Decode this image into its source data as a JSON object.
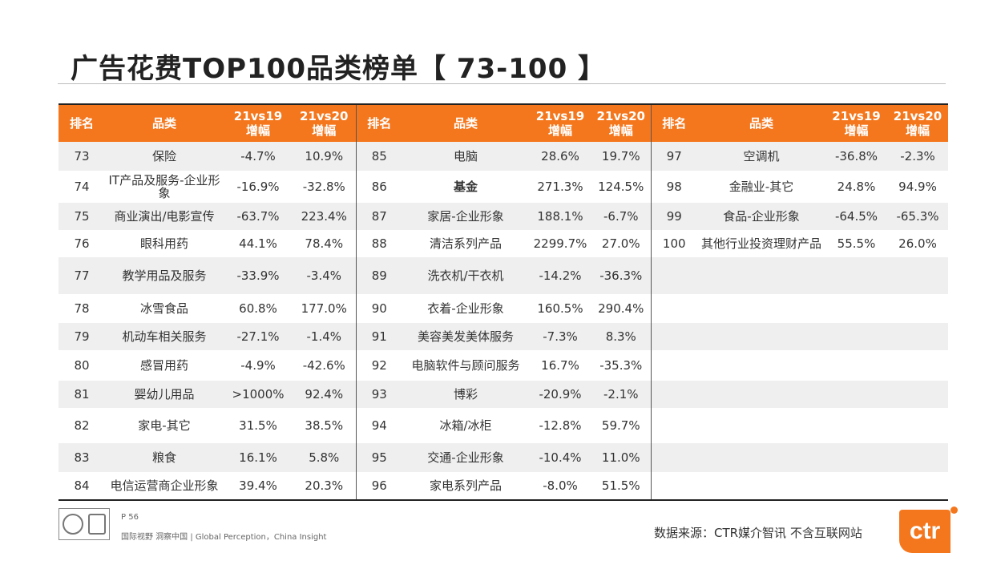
{
  "title": "广告花费TOP100品类榜单【 73-100 】",
  "headers": {
    "rank": "排名",
    "category": "品类",
    "c21vs19_line1": "21vs19",
    "c21vs19_line2": "增幅",
    "c21vs20_line1": "21vs20",
    "c21vs20_line2": "增幅"
  },
  "rows": [
    [
      {
        "rank": "73",
        "cat": "保险",
        "g19": "-4.7%",
        "g20": "10.9%"
      },
      {
        "rank": "85",
        "cat": "电脑",
        "g19": "28.6%",
        "g20": "19.7%"
      },
      {
        "rank": "97",
        "cat": "空调机",
        "g19": "-36.8%",
        "g20": "-2.3%"
      }
    ],
    [
      {
        "rank": "74",
        "cat": "IT产品及服务-企业形象",
        "g19": "-16.9%",
        "g20": "-32.8%"
      },
      {
        "rank": "86",
        "cat": "基金",
        "g19": "271.3%",
        "g20": "124.5%"
      },
      {
        "rank": "98",
        "cat": "金融业-其它",
        "g19": "24.8%",
        "g20": "94.9%"
      }
    ],
    [
      {
        "rank": "75",
        "cat": "商业演出/电影宣传",
        "g19": "-63.7%",
        "g20": "223.4%"
      },
      {
        "rank": "87",
        "cat": "家居-企业形象",
        "g19": "188.1%",
        "g20": "-6.7%"
      },
      {
        "rank": "99",
        "cat": "食品-企业形象",
        "g19": "-64.5%",
        "g20": "-65.3%"
      }
    ],
    [
      {
        "rank": "76",
        "cat": "眼科用药",
        "g19": "44.1%",
        "g20": "78.4%"
      },
      {
        "rank": "88",
        "cat": "清洁系列产品",
        "g19": "2299.7%",
        "g20": "27.0%"
      },
      {
        "rank": "100",
        "cat": "其他行业投资理财产品",
        "g19": "55.5%",
        "g20": "26.0%"
      }
    ],
    [
      {
        "rank": "77",
        "cat": "教学用品及服务",
        "g19": "-33.9%",
        "g20": "-3.4%"
      },
      {
        "rank": "89",
        "cat": "洗衣机/干衣机",
        "g19": "-14.2%",
        "g20": "-36.3%"
      },
      {
        "rank": "",
        "cat": "",
        "g19": "",
        "g20": ""
      }
    ],
    [
      {
        "rank": "78",
        "cat": "冰雪食品",
        "g19": "60.8%",
        "g20": "177.0%"
      },
      {
        "rank": "90",
        "cat": "衣着-企业形象",
        "g19": "160.5%",
        "g20": "290.4%"
      },
      {
        "rank": "",
        "cat": "",
        "g19": "",
        "g20": ""
      }
    ],
    [
      {
        "rank": "79",
        "cat": "机动车相关服务",
        "g19": "-27.1%",
        "g20": "-1.4%"
      },
      {
        "rank": "91",
        "cat": "美容美发美体服务",
        "g19": "-7.3%",
        "g20": "8.3%"
      },
      {
        "rank": "",
        "cat": "",
        "g19": "",
        "g20": ""
      }
    ],
    [
      {
        "rank": "80",
        "cat": "感冒用药",
        "g19": "-4.9%",
        "g20": "-42.6%"
      },
      {
        "rank": "92",
        "cat": "电脑软件与顾问服务",
        "g19": "16.7%",
        "g20": "-35.3%"
      },
      {
        "rank": "",
        "cat": "",
        "g19": "",
        "g20": ""
      }
    ],
    [
      {
        "rank": "81",
        "cat": "婴幼儿用品",
        "g19": ">1000%",
        "g20": "92.4%"
      },
      {
        "rank": "93",
        "cat": "博彩",
        "g19": "-20.9%",
        "g20": "-2.1%"
      },
      {
        "rank": "",
        "cat": "",
        "g19": "",
        "g20": ""
      }
    ],
    [
      {
        "rank": "82",
        "cat": "家电-其它",
        "g19": "31.5%",
        "g20": "38.5%"
      },
      {
        "rank": "94",
        "cat": "冰箱/冰柜",
        "g19": "-12.8%",
        "g20": "59.7%"
      },
      {
        "rank": "",
        "cat": "",
        "g19": "",
        "g20": ""
      }
    ],
    [
      {
        "rank": "83",
        "cat": "粮食",
        "g19": "16.1%",
        "g20": "5.8%"
      },
      {
        "rank": "95",
        "cat": "交通-企业形象",
        "g19": "-10.4%",
        "g20": "11.0%"
      },
      {
        "rank": "",
        "cat": "",
        "g19": "",
        "g20": ""
      }
    ],
    [
      {
        "rank": "84",
        "cat": "电信运营商企业形象",
        "g19": "39.4%",
        "g20": "20.3%"
      },
      {
        "rank": "96",
        "cat": "家电系列产品",
        "g19": "-8.0%",
        "g20": "51.5%"
      },
      {
        "rank": "",
        "cat": "",
        "g19": "",
        "g20": ""
      }
    ]
  ],
  "footer": {
    "page": "P 56",
    "slogan": "国际视野 洞察中国 |  Global Perception，China Insight",
    "source": "数据来源：CTR媒介智讯  不含互联网站",
    "brand": "ctr"
  }
}
